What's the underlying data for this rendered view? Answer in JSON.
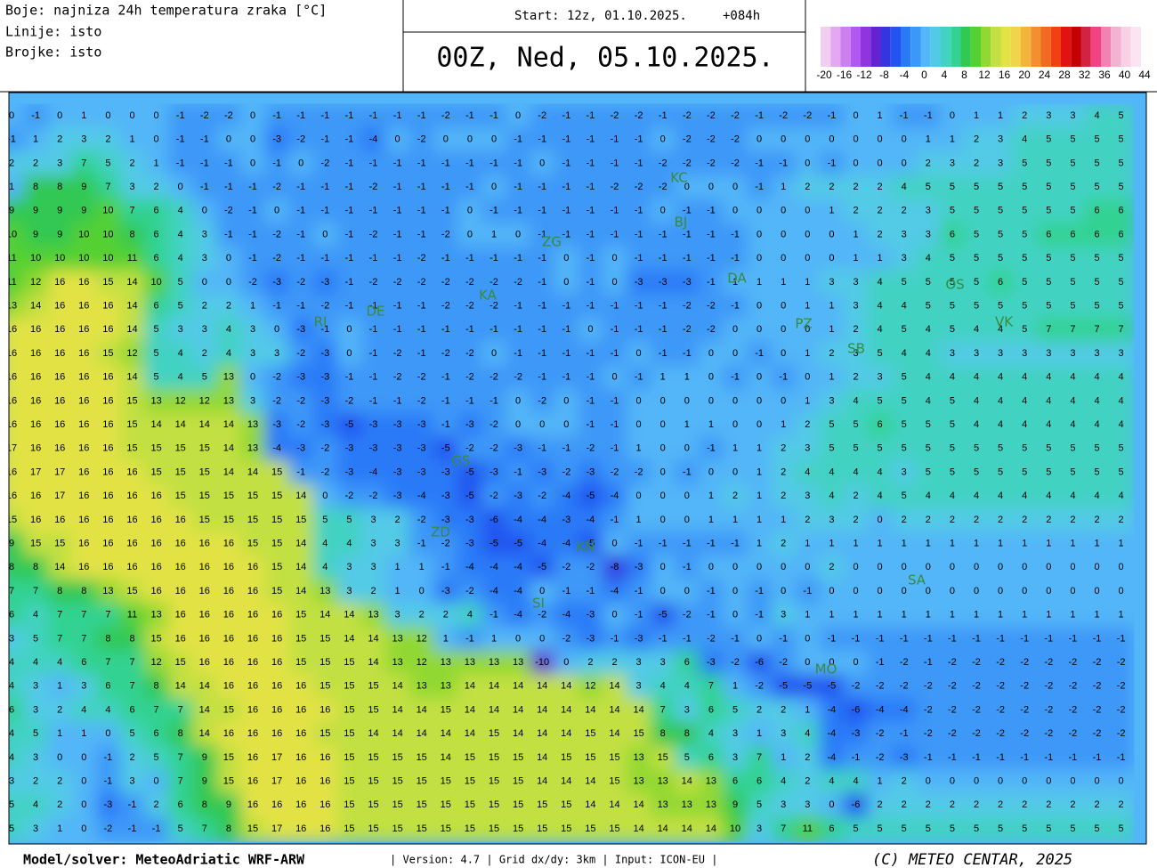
{
  "header": {
    "legend_lines": [
      "Boje: najniza 24h temperatura zraka [°C]",
      "Linije: isto",
      "Brojke: isto"
    ],
    "start": "Start: 12z, 01.10.2025.",
    "lead": "+084h",
    "valid": "00Z, Ned, 05.10.2025."
  },
  "colorbar": {
    "colors": [
      "#f2cdf2",
      "#e4a8f2",
      "#cc80f0",
      "#b058f0",
      "#9034e0",
      "#6422d0",
      "#3434e0",
      "#2454f0",
      "#2a7af8",
      "#3c98f8",
      "#52b6f8",
      "#52cae6",
      "#42d2c2",
      "#32d292",
      "#32c852",
      "#54d032",
      "#92d832",
      "#c2e042",
      "#e2e244",
      "#f2d44a",
      "#f2b43a",
      "#f29030",
      "#f26a22",
      "#f24012",
      "#e01212",
      "#c40202",
      "#d42244",
      "#f24284",
      "#f282b2",
      "#f4b2d2",
      "#f8d2e4",
      "#fce4f2"
    ],
    "ticks": [
      -20,
      -16,
      -12,
      -8,
      -4,
      0,
      4,
      8,
      12,
      16,
      20,
      24,
      28,
      32,
      36,
      40,
      44
    ]
  },
  "grid": [
    [
      0,
      -1,
      0,
      1,
      0,
      0,
      0,
      -1,
      -2,
      -2,
      0,
      -1,
      -1,
      -1,
      -1,
      -1,
      -1,
      -1,
      -2,
      -1,
      -1,
      0,
      -2,
      -1,
      -1,
      -2,
      -2,
      -1,
      -2,
      -2,
      -2,
      -1,
      -2,
      -2,
      -1,
      0,
      1,
      -1,
      -1,
      0,
      1,
      1,
      2,
      3,
      3,
      4,
      5
    ],
    [
      -1,
      1,
      2,
      3,
      2,
      1,
      0,
      -1,
      -1,
      0,
      0,
      -3,
      -2,
      -1,
      -1,
      -4,
      0,
      -2,
      0,
      0,
      0,
      -1,
      -1,
      -1,
      -1,
      -1,
      -1,
      0,
      -2,
      -2,
      -2,
      0,
      0,
      0,
      0,
      0,
      0,
      0,
      1,
      1,
      2,
      3,
      4,
      5,
      5,
      5,
      5
    ],
    [
      2,
      2,
      3,
      7,
      5,
      2,
      1,
      -1,
      -1,
      -1,
      0,
      -1,
      0,
      -2,
      -1,
      -1,
      -1,
      -1,
      -1,
      -1,
      -1,
      -1,
      0,
      -1,
      -1,
      -1,
      -1,
      -2,
      -2,
      -2,
      -2,
      -1,
      -1,
      0,
      -1,
      0,
      0,
      0,
      2,
      3,
      2,
      3,
      5,
      5,
      5,
      5,
      5
    ],
    [
      1,
      8,
      8,
      9,
      7,
      3,
      2,
      0,
      -1,
      -1,
      -1,
      -2,
      -1,
      -1,
      -1,
      -2,
      -1,
      -1,
      -1,
      -1,
      0,
      -1,
      -1,
      -1,
      -1,
      -2,
      -2,
      -2,
      0,
      0,
      0,
      -1,
      1,
      2,
      2,
      2,
      2,
      4,
      5,
      5,
      5,
      5,
      5,
      5,
      5,
      5,
      5
    ],
    [
      9,
      9,
      9,
      9,
      10,
      7,
      6,
      4,
      0,
      -2,
      -1,
      0,
      -1,
      -1,
      -1,
      -1,
      -1,
      -1,
      -1,
      0,
      -1,
      -1,
      -1,
      -1,
      -1,
      -1,
      -1,
      0,
      -1,
      -1,
      0,
      0,
      0,
      0,
      1,
      2,
      2,
      2,
      3,
      5,
      5,
      5,
      5,
      5,
      5,
      6,
      6
    ],
    [
      10,
      9,
      9,
      10,
      10,
      8,
      6,
      4,
      3,
      -1,
      -1,
      -2,
      -1,
      0,
      -1,
      -2,
      -1,
      -1,
      -2,
      0,
      1,
      0,
      -1,
      -1,
      -1,
      -1,
      -1,
      -1,
      -1,
      -1,
      -1,
      0,
      0,
      0,
      0,
      1,
      2,
      3,
      3,
      6,
      5,
      5,
      5,
      6,
      6,
      6,
      6
    ],
    [
      11,
      10,
      10,
      10,
      10,
      11,
      6,
      4,
      3,
      0,
      -1,
      -2,
      -1,
      -1,
      -1,
      -1,
      -1,
      -2,
      -1,
      -1,
      -1,
      -1,
      -1,
      0,
      -1,
      0,
      -1,
      -1,
      -1,
      -1,
      -1,
      0,
      0,
      0,
      0,
      1,
      1,
      3,
      4,
      5,
      5,
      5,
      5,
      5,
      5,
      5,
      5
    ],
    [
      11,
      12,
      16,
      16,
      15,
      14,
      10,
      5,
      0,
      0,
      -2,
      -3,
      -2,
      -3,
      -1,
      -2,
      -2,
      -2,
      -2,
      -2,
      -2,
      -2,
      -1,
      0,
      -1,
      0,
      -3,
      -3,
      -3,
      -1,
      1,
      1,
      1,
      1,
      3,
      3,
      4,
      5,
      5,
      5,
      5,
      6,
      5,
      5,
      5,
      5,
      5
    ],
    [
      13,
      14,
      16,
      16,
      16,
      14,
      6,
      5,
      2,
      2,
      1,
      -1,
      -1,
      -2,
      -1,
      -1,
      -1,
      -1,
      -2,
      -2,
      -2,
      -1,
      -1,
      -1,
      -1,
      -1,
      -1,
      -1,
      -2,
      -2,
      -1,
      0,
      0,
      1,
      1,
      3,
      4,
      4,
      5,
      5,
      5,
      5,
      5,
      5,
      5,
      5,
      5
    ],
    [
      16,
      16,
      16,
      16,
      16,
      14,
      5,
      3,
      3,
      4,
      3,
      0,
      -3,
      -1,
      0,
      -1,
      -1,
      -1,
      -1,
      -1,
      -1,
      -1,
      -1,
      -1,
      0,
      -1,
      -1,
      -1,
      -2,
      -2,
      0,
      0,
      0,
      0,
      1,
      2,
      4,
      5,
      4,
      5,
      4,
      4,
      5,
      7,
      7,
      7,
      7
    ],
    [
      16,
      16,
      16,
      16,
      15,
      12,
      5,
      4,
      2,
      4,
      3,
      3,
      -2,
      -3,
      0,
      -1,
      -2,
      -1,
      -2,
      -2,
      0,
      -1,
      -1,
      -1,
      -1,
      -1,
      0,
      -1,
      -1,
      0,
      0,
      -1,
      0,
      1,
      2,
      3,
      5,
      4,
      4,
      3,
      3,
      3,
      3,
      3,
      3,
      3,
      3
    ],
    [
      16,
      16,
      16,
      16,
      16,
      14,
      5,
      4,
      5,
      13,
      0,
      -2,
      -3,
      -3,
      -1,
      -1,
      -2,
      -2,
      -1,
      -2,
      -2,
      -2,
      -1,
      -1,
      -1,
      0,
      -1,
      1,
      1,
      0,
      -1,
      0,
      -1,
      0,
      1,
      2,
      3,
      5,
      4,
      4,
      4,
      4,
      4,
      4,
      4,
      4,
      4
    ],
    [
      16,
      16,
      16,
      16,
      16,
      15,
      13,
      12,
      12,
      13,
      3,
      -2,
      -2,
      -3,
      -2,
      -1,
      -1,
      -2,
      -1,
      -1,
      -1,
      0,
      -2,
      0,
      -1,
      -1,
      0,
      0,
      0,
      0,
      0,
      0,
      0,
      1,
      3,
      4,
      5,
      5,
      4,
      5,
      4,
      4,
      4,
      4,
      4,
      4,
      4
    ],
    [
      16,
      16,
      16,
      16,
      16,
      15,
      14,
      14,
      14,
      14,
      13,
      -3,
      -2,
      -3,
      -5,
      -3,
      -3,
      -3,
      -1,
      -3,
      -2,
      0,
      0,
      0,
      -1,
      -1,
      0,
      0,
      1,
      1,
      0,
      0,
      1,
      2,
      5,
      5,
      6,
      5,
      5,
      5,
      4,
      4,
      4,
      4,
      4,
      4,
      4
    ],
    [
      17,
      16,
      16,
      16,
      16,
      15,
      15,
      15,
      15,
      14,
      13,
      -4,
      -3,
      -2,
      -3,
      -3,
      -3,
      -3,
      -5,
      -2,
      -2,
      -3,
      -1,
      -1,
      -2,
      -1,
      1,
      0,
      0,
      -1,
      1,
      1,
      2,
      3,
      5,
      5,
      5,
      5,
      5,
      5,
      5,
      5,
      5,
      5,
      5,
      5,
      5
    ],
    [
      16,
      17,
      17,
      16,
      16,
      16,
      15,
      15,
      15,
      14,
      14,
      15,
      -1,
      -2,
      -3,
      -4,
      -3,
      -3,
      -3,
      -5,
      -3,
      -1,
      -3,
      -2,
      -3,
      -2,
      -2,
      0,
      -1,
      0,
      0,
      1,
      2,
      4,
      4,
      4,
      4,
      3,
      5,
      5,
      5,
      5,
      5,
      5,
      5,
      5,
      5
    ],
    [
      16,
      16,
      17,
      16,
      16,
      16,
      16,
      15,
      15,
      15,
      15,
      15,
      14,
      0,
      -2,
      -2,
      -3,
      -4,
      -3,
      -5,
      -2,
      -3,
      -2,
      -4,
      -5,
      -4,
      0,
      0,
      0,
      1,
      2,
      1,
      2,
      3,
      4,
      2,
      4,
      5,
      4,
      4,
      4,
      4,
      4,
      4,
      4,
      4,
      4
    ],
    [
      15,
      16,
      16,
      16,
      16,
      16,
      16,
      16,
      15,
      15,
      15,
      15,
      15,
      5,
      5,
      3,
      2,
      -2,
      -3,
      -3,
      -6,
      -4,
      -4,
      -3,
      -4,
      -1,
      1,
      0,
      0,
      1,
      1,
      1,
      1,
      2,
      3,
      2,
      0,
      2,
      2,
      2,
      2,
      2,
      2,
      2,
      2,
      2,
      2
    ],
    [
      9,
      15,
      15,
      16,
      16,
      16,
      16,
      16,
      16,
      16,
      15,
      15,
      14,
      4,
      4,
      3,
      3,
      -1,
      -2,
      -3,
      -5,
      -5,
      -4,
      -4,
      -5,
      0,
      -1,
      -1,
      -1,
      -1,
      -1,
      1,
      2,
      1,
      1,
      1,
      1,
      1,
      1,
      1,
      1,
      1,
      1,
      1,
      1,
      1,
      1
    ],
    [
      8,
      8,
      14,
      16,
      16,
      16,
      16,
      16,
      16,
      16,
      16,
      15,
      14,
      4,
      3,
      3,
      1,
      1,
      -1,
      -4,
      -4,
      -4,
      -5,
      -2,
      -2,
      -8,
      -3,
      0,
      -1,
      0,
      0,
      0,
      0,
      0,
      2,
      0,
      0,
      0,
      0,
      0,
      0,
      0,
      0,
      0,
      0,
      0,
      0
    ],
    [
      7,
      7,
      8,
      8,
      13,
      15,
      16,
      16,
      16,
      16,
      16,
      15,
      14,
      13,
      3,
      2,
      1,
      0,
      -3,
      -2,
      -4,
      -4,
      0,
      -1,
      -1,
      -4,
      -1,
      0,
      0,
      -1,
      0,
      -1,
      0,
      -1,
      0,
      0,
      0,
      0,
      0,
      0,
      0,
      0,
      0,
      0,
      0,
      0,
      0
    ],
    [
      6,
      4,
      7,
      7,
      7,
      11,
      13,
      16,
      16,
      16,
      16,
      16,
      15,
      14,
      14,
      13,
      3,
      2,
      2,
      4,
      -1,
      -4,
      -2,
      -4,
      -3,
      0,
      -1,
      -5,
      -2,
      -1,
      0,
      -1,
      3,
      1,
      1,
      1,
      1,
      1,
      1,
      1,
      1,
      1,
      1,
      1,
      1,
      1,
      1
    ],
    [
      3,
      5,
      7,
      7,
      8,
      8,
      15,
      16,
      16,
      16,
      16,
      16,
      15,
      15,
      14,
      14,
      13,
      12,
      1,
      -1,
      1,
      0,
      0,
      -2,
      -3,
      -1,
      -3,
      -1,
      -1,
      -2,
      -1,
      0,
      -1,
      0,
      -1,
      -1,
      -1,
      -1,
      -1,
      -1,
      -1,
      -1,
      -1,
      -1,
      -1,
      -1,
      -1
    ],
    [
      4,
      4,
      4,
      6,
      7,
      7,
      12,
      15,
      16,
      16,
      16,
      16,
      15,
      15,
      15,
      14,
      13,
      12,
      13,
      13,
      13,
      13,
      -10,
      0,
      2,
      2,
      3,
      3,
      6,
      -3,
      -2,
      -6,
      -2,
      0,
      0,
      0,
      -1,
      -2,
      -1,
      -2,
      -2,
      -2,
      -2,
      -2,
      -2,
      -2,
      -2
    ],
    [
      4,
      3,
      1,
      3,
      6,
      7,
      8,
      14,
      14,
      16,
      16,
      16,
      16,
      15,
      15,
      15,
      14,
      13,
      13,
      14,
      14,
      14,
      14,
      14,
      12,
      14,
      3,
      4,
      4,
      7,
      1,
      -2,
      -5,
      -5,
      -5,
      -2,
      -2,
      -2,
      -2,
      -2,
      -2,
      -2,
      -2,
      -2,
      -2,
      -2,
      -2
    ],
    [
      6,
      3,
      2,
      4,
      4,
      6,
      7,
      7,
      14,
      15,
      16,
      16,
      16,
      16,
      15,
      15,
      14,
      14,
      15,
      14,
      14,
      14,
      14,
      14,
      14,
      14,
      14,
      7,
      3,
      6,
      5,
      2,
      2,
      1,
      -4,
      -6,
      -4,
      -4,
      -2,
      -2,
      -2,
      -2,
      -2,
      -2,
      -2,
      -2,
      -2
    ],
    [
      4,
      5,
      1,
      1,
      0,
      5,
      6,
      8,
      14,
      16,
      16,
      16,
      16,
      15,
      15,
      14,
      14,
      14,
      14,
      14,
      15,
      14,
      14,
      14,
      15,
      14,
      15,
      8,
      8,
      4,
      3,
      1,
      3,
      4,
      -4,
      -3,
      -2,
      -1,
      -2,
      -2,
      -2,
      -2,
      -2,
      -2,
      -2,
      -2,
      -2
    ],
    [
      4,
      3,
      0,
      0,
      -1,
      2,
      5,
      7,
      9,
      15,
      16,
      17,
      16,
      16,
      15,
      15,
      15,
      15,
      14,
      15,
      15,
      15,
      14,
      15,
      15,
      15,
      13,
      15,
      5,
      6,
      3,
      7,
      1,
      2,
      -4,
      -1,
      -2,
      -3,
      -1,
      -1,
      -1,
      -1,
      -1,
      -1,
      -1,
      -1,
      -1
    ],
    [
      3,
      2,
      2,
      0,
      -1,
      3,
      0,
      7,
      9,
      15,
      16,
      17,
      16,
      16,
      15,
      15,
      15,
      15,
      15,
      15,
      15,
      15,
      14,
      14,
      14,
      15,
      13,
      13,
      14,
      13,
      6,
      6,
      4,
      2,
      4,
      4,
      1,
      2,
      0,
      0,
      0,
      0,
      0,
      0,
      0,
      0,
      0
    ],
    [
      5,
      4,
      2,
      0,
      -3,
      -1,
      2,
      6,
      8,
      9,
      16,
      16,
      16,
      16,
      15,
      15,
      15,
      15,
      15,
      15,
      15,
      15,
      15,
      15,
      14,
      14,
      14,
      13,
      13,
      13,
      9,
      5,
      3,
      3,
      0,
      -6,
      2,
      2,
      2,
      2,
      2,
      2,
      2,
      2,
      2,
      2,
      2
    ],
    [
      5,
      3,
      1,
      0,
      -2,
      -1,
      -1,
      5,
      7,
      8,
      15,
      17,
      16,
      16,
      15,
      15,
      15,
      15,
      15,
      15,
      15,
      15,
      15,
      15,
      15,
      15,
      14,
      14,
      14,
      14,
      10,
      3,
      7,
      11,
      6,
      5,
      5,
      5,
      5,
      5,
      5,
      5,
      5,
      5,
      5,
      5,
      5
    ]
  ],
  "places": [
    "ZG",
    "KA",
    "RI",
    "DE",
    "GS",
    "ZD",
    "KN",
    "SI",
    "MO",
    "SA",
    "OS",
    "VK",
    "SB",
    "PZ",
    "DA",
    "BJ",
    "KC"
  ],
  "footer": {
    "model": "Model/solver: MeteoAdriatic WRF-ARW",
    "info": "| Version: 4.7 | Grid dx/dy: 3km | Input: ICON-EU |",
    "copyright": "(C) METEO CENTAR, 2025"
  }
}
